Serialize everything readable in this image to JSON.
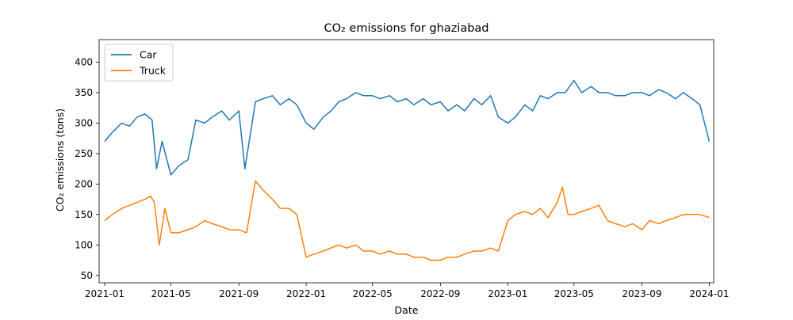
{
  "chart_data": {
    "type": "line",
    "title": "CO₂ emissions for ghaziabad",
    "xlabel": "Date",
    "ylabel": "CO₂ emissions (tons)",
    "x_range": [
      "2020-12-22",
      "2024-01-09"
    ],
    "ylim": [
      38,
      437
    ],
    "grid": false,
    "legend_position": "top-left",
    "x_ticks": [
      "2021-01",
      "2021-05",
      "2021-09",
      "2022-01",
      "2022-05",
      "2022-09",
      "2023-01",
      "2023-05",
      "2023-09",
      "2024-01"
    ],
    "x_tick_dates": [
      "2021-01-01",
      "2021-05-01",
      "2021-09-01",
      "2022-01-01",
      "2022-05-01",
      "2022-09-01",
      "2023-01-01",
      "2023-05-01",
      "2023-09-01",
      "2024-01-01"
    ],
    "y_ticks": [
      50,
      100,
      150,
      200,
      250,
      300,
      350,
      400
    ],
    "series": [
      {
        "name": "Car",
        "color": "#1f77b4",
        "x": [
          "2021-01-01",
          "2021-01-15",
          "2021-02-01",
          "2021-02-15",
          "2021-03-01",
          "2021-03-15",
          "2021-03-28",
          "2021-04-05",
          "2021-04-15",
          "2021-05-01",
          "2021-05-15",
          "2021-06-01",
          "2021-06-15",
          "2021-07-01",
          "2021-07-15",
          "2021-08-01",
          "2021-08-15",
          "2021-09-01",
          "2021-09-12",
          "2021-10-01",
          "2021-10-15",
          "2021-11-01",
          "2021-11-15",
          "2021-12-01",
          "2021-12-15",
          "2022-01-01",
          "2022-01-15",
          "2022-02-01",
          "2022-02-15",
          "2022-03-01",
          "2022-03-15",
          "2022-04-01",
          "2022-04-15",
          "2022-05-01",
          "2022-05-15",
          "2022-06-01",
          "2022-06-15",
          "2022-07-01",
          "2022-07-15",
          "2022-08-01",
          "2022-08-15",
          "2022-09-01",
          "2022-09-15",
          "2022-10-01",
          "2022-10-15",
          "2022-11-01",
          "2022-11-15",
          "2022-12-01",
          "2022-12-15",
          "2023-01-01",
          "2023-01-15",
          "2023-02-01",
          "2023-02-15",
          "2023-03-01",
          "2023-03-15",
          "2023-04-01",
          "2023-04-15",
          "2023-05-01",
          "2023-05-15",
          "2023-06-01",
          "2023-06-15",
          "2023-07-01",
          "2023-07-15",
          "2023-08-01",
          "2023-08-15",
          "2023-09-01",
          "2023-09-15",
          "2023-10-01",
          "2023-10-15",
          "2023-11-01",
          "2023-11-15",
          "2023-12-01",
          "2023-12-15",
          "2024-01-01"
        ],
        "values": [
          270,
          285,
          300,
          295,
          310,
          315,
          305,
          225,
          270,
          215,
          230,
          240,
          305,
          300,
          310,
          320,
          305,
          320,
          225,
          335,
          340,
          345,
          330,
          340,
          330,
          300,
          290,
          310,
          320,
          335,
          340,
          350,
          345,
          345,
          340,
          345,
          335,
          340,
          330,
          340,
          330,
          335,
          320,
          330,
          320,
          340,
          330,
          345,
          310,
          300,
          310,
          330,
          320,
          345,
          340,
          350,
          350,
          370,
          350,
          360,
          350,
          350,
          345,
          345,
          350,
          350,
          345,
          355,
          350,
          340,
          350,
          340,
          330,
          270
        ]
      },
      {
        "name": "Truck",
        "color": "#ff7f0e",
        "x": [
          "2021-01-01",
          "2021-01-15",
          "2021-02-01",
          "2021-02-15",
          "2021-03-01",
          "2021-03-15",
          "2021-03-25",
          "2021-04-01",
          "2021-04-10",
          "2021-04-20",
          "2021-05-01",
          "2021-05-15",
          "2021-06-01",
          "2021-06-15",
          "2021-07-01",
          "2021-07-15",
          "2021-08-01",
          "2021-08-15",
          "2021-09-01",
          "2021-09-15",
          "2021-10-01",
          "2021-10-15",
          "2021-11-01",
          "2021-11-15",
          "2021-12-01",
          "2021-12-15",
          "2022-01-01",
          "2022-01-15",
          "2022-02-01",
          "2022-02-15",
          "2022-03-01",
          "2022-03-15",
          "2022-04-01",
          "2022-04-15",
          "2022-05-01",
          "2022-05-15",
          "2022-06-01",
          "2022-06-15",
          "2022-07-01",
          "2022-07-15",
          "2022-08-01",
          "2022-08-15",
          "2022-09-01",
          "2022-09-15",
          "2022-10-01",
          "2022-10-15",
          "2022-11-01",
          "2022-11-15",
          "2022-12-01",
          "2022-12-15",
          "2023-01-01",
          "2023-01-15",
          "2023-02-01",
          "2023-02-15",
          "2023-03-01",
          "2023-03-15",
          "2023-04-01",
          "2023-04-10",
          "2023-04-20",
          "2023-05-01",
          "2023-05-15",
          "2023-06-01",
          "2023-06-15",
          "2023-07-01",
          "2023-07-15",
          "2023-08-01",
          "2023-08-15",
          "2023-09-01",
          "2023-09-15",
          "2023-10-01",
          "2023-10-15",
          "2023-11-01",
          "2023-11-15",
          "2023-12-01",
          "2023-12-15",
          "2024-01-01"
        ],
        "values": [
          140,
          150,
          160,
          165,
          170,
          175,
          180,
          170,
          100,
          160,
          120,
          120,
          125,
          130,
          140,
          135,
          130,
          125,
          125,
          120,
          205,
          190,
          175,
          160,
          160,
          150,
          80,
          85,
          90,
          95,
          100,
          95,
          100,
          90,
          90,
          85,
          90,
          85,
          85,
          80,
          80,
          75,
          75,
          80,
          80,
          85,
          90,
          90,
          95,
          90,
          140,
          150,
          155,
          150,
          160,
          145,
          170,
          195,
          150,
          150,
          155,
          160,
          165,
          140,
          135,
          130,
          135,
          125,
          140,
          135,
          140,
          145,
          150,
          150,
          150,
          145
        ]
      }
    ]
  }
}
